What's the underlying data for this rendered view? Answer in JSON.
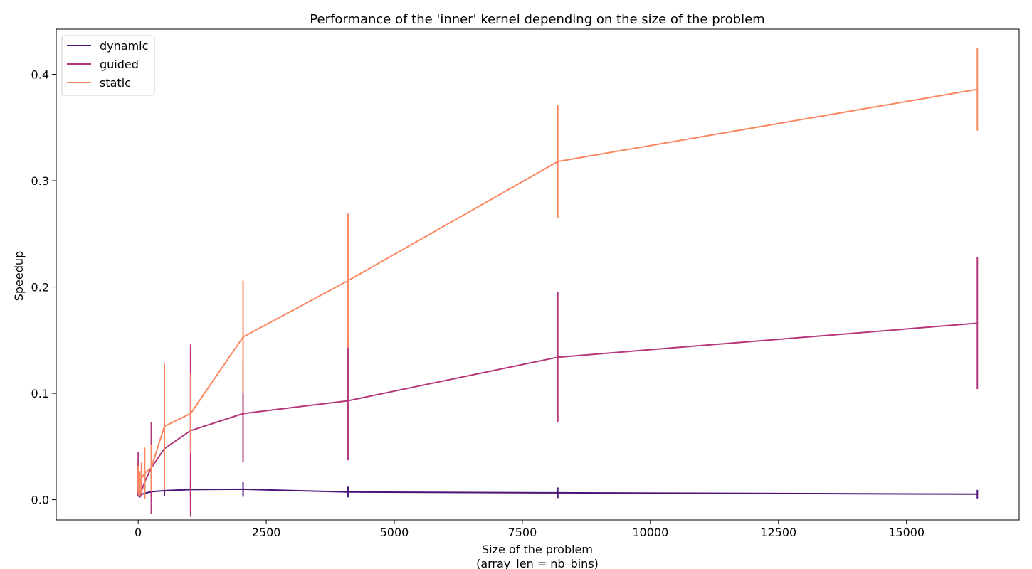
{
  "chart_data": {
    "type": "line",
    "title": "Performance of the 'inner' kernel depending on the size of the problem",
    "xlabel_line1": "Size of the problem",
    "xlabel_line2": "(array_len = nb_bins)",
    "ylabel": "Speedup",
    "xlim": [
      -1600,
      17200
    ],
    "ylim": [
      -0.019,
      0.4425
    ],
    "xticks": [
      0,
      2500,
      5000,
      7500,
      10000,
      12500,
      15000
    ],
    "xtick_labels": [
      "0",
      "2500",
      "5000",
      "7500",
      "10000",
      "12500",
      "15000"
    ],
    "yticks": [
      0.0,
      0.1,
      0.2,
      0.3,
      0.4
    ],
    "ytick_labels": [
      "0.0",
      "0.1",
      "0.2",
      "0.3",
      "0.4"
    ],
    "legend_position": "top-left",
    "grid": false,
    "x": [
      1,
      2,
      4,
      8,
      16,
      32,
      64,
      128,
      256,
      512,
      1024,
      2048,
      4096,
      8192,
      16384
    ],
    "series": [
      {
        "name": "dynamic",
        "color": "#4c1478",
        "values": [
          0.004,
          0.004,
          0.004,
          0.004,
          0.004,
          0.004,
          0.005,
          0.006,
          0.0075,
          0.0085,
          0.0095,
          0.0098,
          0.0072,
          0.0065,
          0.0052
        ],
        "errors": [
          0.001,
          0.001,
          0.001,
          0.001,
          0.001,
          0.002,
          0.002,
          0.003,
          0.004,
          0.005,
          0.007,
          0.007,
          0.005,
          0.005,
          0.004
        ]
      },
      {
        "name": "guided",
        "color": "#b5367a",
        "values": [
          0.025,
          0.02,
          0.015,
          0.008,
          0.006,
          0.006,
          0.008,
          0.017,
          0.03,
          0.048,
          0.065,
          0.081,
          0.093,
          0.134,
          0.166
        ],
        "errors": [
          0.02,
          0.015,
          0.01,
          0.005,
          0.003,
          0.003,
          0.005,
          0.01,
          0.043,
          0.018,
          0.081,
          0.046,
          0.056,
          0.061,
          0.062
        ]
      },
      {
        "name": "static",
        "color": "#fb8761",
        "values": [
          0.02,
          0.018,
          0.016,
          0.012,
          0.008,
          0.015,
          0.02,
          0.025,
          0.03,
          0.069,
          0.081,
          0.153,
          0.206,
          0.318,
          0.386
        ],
        "errors": [
          0.012,
          0.01,
          0.008,
          0.006,
          0.005,
          0.012,
          0.015,
          0.024,
          0.022,
          0.06,
          0.037,
          0.053,
          0.063,
          0.053,
          0.039
        ]
      }
    ]
  }
}
